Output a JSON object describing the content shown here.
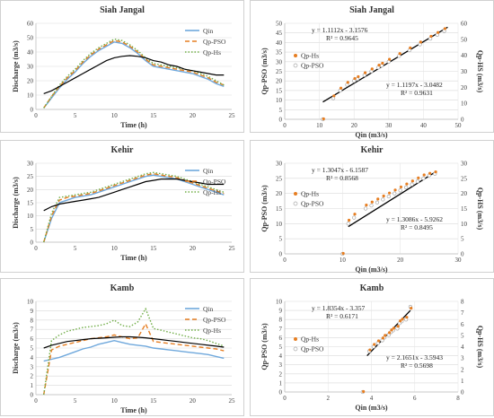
{
  "chart_data": [
    {
      "type": "line",
      "title": "Siah Jangal",
      "xlabel": "Time (h)",
      "ylabel": "Discharge (m3/s)",
      "xlim": [
        0,
        25
      ],
      "ylim": [
        0,
        60
      ],
      "xticks": [
        0,
        5,
        10,
        15,
        20,
        25
      ],
      "yticks": [
        0,
        10,
        20,
        30,
        40,
        50,
        60
      ],
      "legend_position": "right",
      "series": [
        {
          "name": "Qin",
          "color": "#6fa8dc",
          "style": "solid",
          "x": [
            1,
            2,
            3,
            4,
            5,
            6,
            7,
            8,
            9,
            10,
            11,
            12,
            13,
            14,
            15,
            16,
            17,
            18,
            19,
            20,
            21,
            22,
            23,
            24
          ],
          "y": [
            1,
            8,
            15,
            21,
            26,
            32,
            37,
            41,
            44,
            47,
            46,
            43,
            39,
            34,
            30,
            29,
            28,
            27,
            26,
            25,
            23,
            21,
            18,
            16
          ]
        },
        {
          "name": "Qp-PSO",
          "color": "#e67e22",
          "style": "dashed",
          "x": [
            1,
            2,
            3,
            4,
            5,
            6,
            7,
            8,
            9,
            10,
            11,
            12,
            13,
            14,
            15,
            16,
            17,
            18,
            19,
            20,
            21,
            22,
            23,
            24
          ],
          "y": [
            1,
            9,
            16,
            22,
            27,
            33,
            38,
            42,
            45,
            48,
            47,
            44,
            40,
            35,
            31,
            30,
            29,
            28,
            27,
            26,
            24,
            22,
            19,
            17
          ]
        },
        {
          "name": "Qp-Hs",
          "color": "#70ad47",
          "style": "dotted",
          "x": [
            1,
            2,
            3,
            4,
            5,
            6,
            7,
            8,
            9,
            10,
            11,
            12,
            13,
            14,
            15,
            16,
            17,
            18,
            19,
            20,
            21,
            22,
            23,
            24
          ],
          "y": [
            1,
            9,
            17,
            23,
            28,
            34,
            39,
            43,
            46,
            49,
            48,
            45,
            41,
            36,
            32,
            31,
            30,
            29,
            28,
            27,
            25,
            23,
            20,
            17
          ]
        },
        {
          "name": "",
          "color": "#000000",
          "style": "solid",
          "x": [
            1,
            2,
            3,
            4,
            5,
            6,
            7,
            8,
            9,
            10,
            11,
            12,
            13,
            14,
            15,
            16,
            17,
            18,
            19,
            20,
            21,
            22,
            23,
            24
          ],
          "y": [
            11,
            13,
            16,
            19,
            22,
            25,
            28,
            31,
            34,
            36,
            37,
            37.5,
            37,
            36,
            34,
            33,
            31,
            30,
            28,
            27,
            26,
            25,
            24,
            24
          ]
        }
      ]
    },
    {
      "type": "scatter",
      "title": "Siah Jangal",
      "xlabel": "Qin (m3/s)",
      "ylabel": "Qp-PSO (m3/s)",
      "y2label": "Qp-HS (m3/s)",
      "xlim": [
        0,
        50
      ],
      "ylim": [
        0,
        50
      ],
      "y2lim": [
        0,
        60
      ],
      "xticks": [
        0,
        10,
        20,
        30,
        40,
        50
      ],
      "yticks": [
        0,
        5,
        10,
        15,
        20,
        25,
        30,
        35,
        40,
        45,
        50
      ],
      "y2ticks": [
        0,
        10,
        20,
        30,
        40,
        50,
        60
      ],
      "legend": [
        "Qp-Hs",
        "Qp-PSO"
      ],
      "eq1": "y = 1.1112x - 3.1576",
      "r2_1": "R² = 0.9645",
      "eq2": "y = 1.1197x - 3.0482",
      "r2_2": "R² = 0.9631",
      "fit": {
        "x": [
          11,
          47
        ],
        "y": [
          9,
          48
        ]
      },
      "points_hs": {
        "x": [
          11,
          14,
          16,
          18,
          20,
          21,
          23,
          25,
          27,
          28,
          30,
          33,
          36,
          39,
          42,
          44,
          46
        ],
        "y": [
          0,
          12,
          16,
          19,
          21,
          22,
          24,
          26,
          28,
          29,
          31,
          34,
          37,
          40,
          43,
          45,
          47
        ]
      },
      "points_pso": {
        "x": [
          11,
          14,
          16,
          18,
          20,
          21,
          23,
          25,
          27,
          28,
          30,
          33,
          36,
          39,
          42,
          44,
          46
        ],
        "y": [
          0,
          11,
          15,
          18,
          20,
          21,
          23,
          25,
          27,
          28,
          30,
          33,
          36,
          39,
          42,
          44,
          46
        ]
      }
    },
    {
      "type": "line",
      "title": "Kehir",
      "xlabel": "Time (h)",
      "ylabel": "Discharge (m3/s)",
      "xlim": [
        0,
        25
      ],
      "ylim": [
        0,
        30
      ],
      "xticks": [
        0,
        5,
        10,
        15,
        20,
        25
      ],
      "yticks": [
        0,
        5,
        10,
        15,
        20,
        25,
        30
      ],
      "legend_position": "right",
      "series": [
        {
          "name": "Qin",
          "color": "#6fa8dc",
          "style": "solid",
          "x": [
            1,
            2,
            3,
            4,
            5,
            6,
            7,
            8,
            9,
            10,
            11,
            12,
            13,
            14,
            15,
            16,
            17,
            18,
            19,
            20,
            21,
            22,
            23,
            24
          ],
          "y": [
            0,
            9,
            15,
            16,
            17,
            17.5,
            18,
            19,
            20,
            21,
            22,
            23,
            24,
            25,
            25.5,
            25,
            24.5,
            24,
            23,
            22,
            21,
            20,
            19,
            18
          ]
        },
        {
          "name": "Qp-PSO",
          "color": "#e67e22",
          "style": "dashed",
          "x": [
            1,
            2,
            3,
            4,
            5,
            6,
            7,
            8,
            9,
            10,
            11,
            12,
            13,
            14,
            15,
            16,
            17,
            18,
            19,
            20,
            21,
            22,
            23,
            24
          ],
          "y": [
            0,
            10,
            16,
            17,
            17.5,
            18,
            18.5,
            19.5,
            20.5,
            21.5,
            22.5,
            23.5,
            24.5,
            25.5,
            26,
            25.5,
            25,
            24.5,
            23.5,
            22.5,
            21.5,
            20.5,
            19.5,
            18.5
          ]
        },
        {
          "name": "Qp-Hs",
          "color": "#70ad47",
          "style": "dotted",
          "x": [
            1,
            2,
            3,
            4,
            5,
            6,
            7,
            8,
            9,
            10,
            11,
            12,
            13,
            14,
            15,
            16,
            17,
            18,
            19,
            20,
            21,
            22,
            23,
            24
          ],
          "y": [
            0,
            11,
            17,
            17.5,
            18,
            18.5,
            19,
            20,
            21,
            22,
            23,
            24,
            25,
            26,
            26.5,
            26,
            25.5,
            25,
            24,
            23,
            22,
            21,
            20,
            19
          ]
        },
        {
          "name": "",
          "color": "#000000",
          "style": "solid",
          "x": [
            1,
            2,
            3,
            4,
            5,
            6,
            7,
            8,
            9,
            10,
            11,
            12,
            13,
            14,
            15,
            16,
            17,
            18,
            19,
            20,
            21,
            22,
            23,
            24
          ],
          "y": [
            12,
            13.5,
            14.5,
            15,
            15.5,
            16,
            16.5,
            17,
            18,
            19,
            20,
            21,
            22,
            23,
            23.5,
            24,
            24,
            24,
            23.5,
            23,
            22.5,
            22,
            22,
            22
          ]
        }
      ]
    },
    {
      "type": "scatter",
      "title": "Kehir",
      "xlabel": "Qin (m3/s)",
      "ylabel": "Qp-PSO (m3/s)",
      "y2label": "Qp-HS (m3/s)",
      "xlim": [
        0,
        30
      ],
      "ylim": [
        0,
        30
      ],
      "y2lim": [
        0,
        30
      ],
      "xticks": [
        0,
        10,
        20,
        30
      ],
      "yticks": [
        0,
        5,
        10,
        15,
        20,
        25,
        30
      ],
      "y2ticks": [
        0,
        5,
        10,
        15,
        20,
        25,
        30
      ],
      "legend": [
        "Qp-Hs",
        "Qp-PSO"
      ],
      "eq1": "y = 1.3047x - 6.1587",
      "r2_1": "R² = 0.8568",
      "eq2": "y = 1.3086x - 5.9262",
      "r2_2": "R² = 0.8495",
      "fit": {
        "x": [
          11,
          26
        ],
        "y": [
          9,
          27
        ]
      },
      "points_hs": {
        "x": [
          10,
          11,
          12,
          14,
          15,
          16,
          17,
          18,
          19,
          20,
          21,
          22,
          23,
          24,
          25,
          26
        ],
        "y": [
          0,
          11,
          13,
          16,
          17,
          18,
          19,
          20,
          21,
          22,
          23,
          24,
          25,
          26,
          26.5,
          27
        ]
      },
      "points_pso": {
        "x": [
          10,
          11,
          12,
          14,
          15,
          16,
          17,
          18,
          19,
          20,
          21,
          22,
          23,
          24,
          25,
          26
        ],
        "y": [
          0,
          10,
          12,
          15,
          16,
          17,
          18,
          19,
          20,
          21,
          22,
          23,
          24,
          25,
          26,
          26.5
        ]
      }
    },
    {
      "type": "line",
      "title": "Kamb",
      "xlabel": "Time (h)",
      "ylabel": "Discharge (m3/s)",
      "xlim": [
        0,
        25
      ],
      "ylim": [
        0,
        10
      ],
      "xticks": [
        0,
        5,
        10,
        15,
        20,
        25
      ],
      "yticks": [
        0,
        1,
        2,
        3,
        4,
        5,
        6,
        7,
        8,
        9,
        10
      ],
      "legend_position": "right",
      "series": [
        {
          "name": "Qin",
          "color": "#6fa8dc",
          "style": "solid",
          "x": [
            1,
            2,
            3,
            4,
            5,
            6,
            7,
            8,
            9,
            10,
            11,
            12,
            13,
            14,
            15,
            16,
            17,
            18,
            19,
            20,
            21,
            22,
            23,
            24
          ],
          "y": [
            3.6,
            3.8,
            4,
            4.3,
            4.6,
            4.9,
            5.1,
            5.4,
            5.6,
            5.8,
            5.6,
            5.4,
            5.3,
            5.2,
            5,
            4.9,
            4.8,
            4.7,
            4.6,
            4.5,
            4.4,
            4.3,
            4.1,
            3.9
          ]
        },
        {
          "name": "Qp-PSO",
          "color": "#e67e22",
          "style": "dashed",
          "x": [
            1,
            2,
            3,
            4,
            5,
            6,
            7,
            8,
            9,
            10,
            11,
            12,
            13,
            14,
            15,
            16,
            17,
            18,
            19,
            20,
            21,
            22,
            23,
            24
          ],
          "y": [
            0,
            4.8,
            5.2,
            5.4,
            5.6,
            5.8,
            6,
            6.1,
            6.2,
            6.4,
            6.2,
            6,
            6.1,
            7.6,
            5.7,
            5.6,
            5.5,
            5.4,
            5.3,
            5.2,
            5.1,
            5,
            4.9,
            4.7
          ]
        },
        {
          "name": "Qp-Hs",
          "color": "#70ad47",
          "style": "dotted",
          "x": [
            1,
            2,
            3,
            4,
            5,
            6,
            7,
            8,
            9,
            10,
            11,
            12,
            13,
            14,
            15,
            16,
            17,
            18,
            19,
            20,
            21,
            22,
            23,
            24
          ],
          "y": [
            0,
            5.8,
            6.4,
            6.8,
            7,
            7.2,
            7.3,
            7.4,
            7.6,
            8,
            7.4,
            7.3,
            7.8,
            9.2,
            7.1,
            6.9,
            6.7,
            6.5,
            6.3,
            6.1,
            6,
            5.8,
            5.5,
            5.2
          ]
        },
        {
          "name": "",
          "color": "#000000",
          "style": "solid",
          "x": [
            1,
            2,
            3,
            4,
            5,
            6,
            7,
            8,
            9,
            10,
            11,
            12,
            13,
            14,
            15,
            16,
            17,
            18,
            19,
            20,
            21,
            22,
            23,
            24
          ],
          "y": [
            5,
            5.3,
            5.5,
            5.7,
            5.8,
            5.9,
            6,
            6.05,
            6.1,
            6.15,
            6.2,
            6.2,
            6.15,
            6.1,
            6,
            5.9,
            5.8,
            5.7,
            5.6,
            5.5,
            5.4,
            5.3,
            5.2,
            5.1
          ]
        }
      ]
    },
    {
      "type": "scatter",
      "title": "Kamb",
      "xlabel": "Qin (m3/s)",
      "ylabel": "Qp-PSO (m3/s)",
      "y2label": "Qp-HS (m3/s)",
      "xlim": [
        0,
        8
      ],
      "ylim": [
        0,
        10
      ],
      "y2lim": [
        0,
        8
      ],
      "xticks": [
        0,
        2,
        4,
        6,
        8
      ],
      "yticks": [
        0,
        1,
        2,
        3,
        4,
        5,
        6,
        7,
        8,
        9,
        10
      ],
      "y2ticks": [
        0,
        1,
        2,
        3,
        4,
        5,
        6,
        7,
        8
      ],
      "legend": [
        "Qp-Hs",
        "Qp-PSO"
      ],
      "eq1": "y = 1.8354x - 3.357",
      "r2_1": "R² = 0.6171",
      "eq2": "y = 2.1651x - 3.5943",
      "r2_2": "R² = 0.5698",
      "fit": {
        "x": [
          3.8,
          5.8
        ],
        "y": [
          4,
          9
        ]
      },
      "points_hs": {
        "x": [
          3.6,
          3.9,
          4.1,
          4.3,
          4.5,
          4.6,
          4.8,
          4.9,
          5,
          5.2,
          5.3,
          5.4,
          5.6,
          5.8
        ],
        "y": [
          0,
          4.6,
          5.2,
          5.6,
          5.9,
          6.2,
          6.5,
          6.8,
          7,
          7.2,
          7.8,
          8,
          8.2,
          9.2
        ]
      },
      "points_pso": {
        "x": [
          3.6,
          3.9,
          4.1,
          4.3,
          4.5,
          4.6,
          4.8,
          4.9,
          5,
          5.2,
          5.3,
          5.4,
          5.6,
          5.8
        ],
        "y": [
          0,
          4.5,
          5,
          5.4,
          5.7,
          6,
          6.3,
          6.6,
          6.8,
          7,
          7.6,
          7.8,
          8,
          9.4
        ]
      }
    }
  ]
}
